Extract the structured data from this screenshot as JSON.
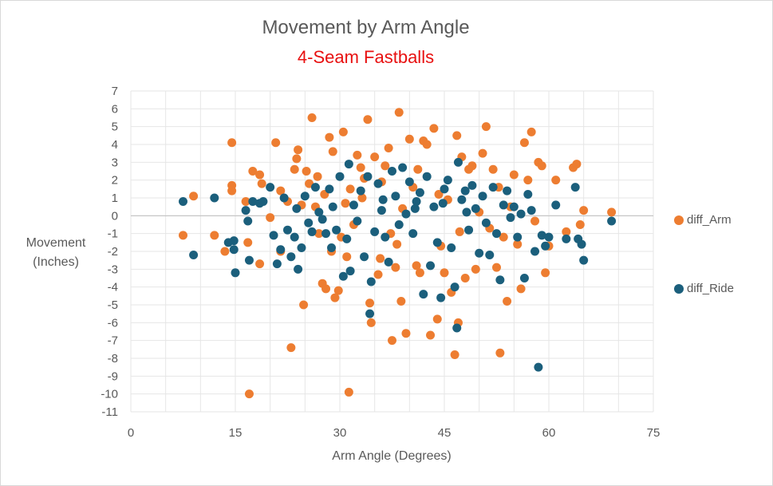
{
  "chart_data": {
    "type": "scatter",
    "title": "Movement by Arm Angle",
    "subtitle": "4-Seam Fastballs",
    "xlabel": "Arm Angle (Degrees)",
    "ylabel_line1": "Movement",
    "ylabel_line2": "(Inches)",
    "xlim": [
      0,
      75
    ],
    "ylim": [
      -11,
      7
    ],
    "x_ticks": [
      0,
      15,
      30,
      45,
      60,
      75
    ],
    "y_ticks": [
      7,
      6,
      5,
      4,
      3,
      2,
      1,
      0,
      -1,
      -2,
      -3,
      -4,
      -5,
      -6,
      -7,
      -8,
      -9,
      -10,
      -11
    ],
    "grid": true,
    "legend_position": "right",
    "series": [
      {
        "name": "diff_Arm",
        "color": "#ed7d31",
        "points": [
          [
            7.5,
            -1.1
          ],
          [
            9,
            1.1
          ],
          [
            12,
            -1.1
          ],
          [
            13.5,
            -2.0
          ],
          [
            14.5,
            4.1
          ],
          [
            14.5,
            1.7
          ],
          [
            14.5,
            1.4
          ],
          [
            16.5,
            0.8
          ],
          [
            16.8,
            -1.5
          ],
          [
            17,
            -10.0
          ],
          [
            17.5,
            2.5
          ],
          [
            18.5,
            2.3
          ],
          [
            18.8,
            1.8
          ],
          [
            18.5,
            -2.7
          ],
          [
            20,
            -0.1
          ],
          [
            20.8,
            4.1
          ],
          [
            21.5,
            1.4
          ],
          [
            21.5,
            -2.0
          ],
          [
            22.5,
            0.8
          ],
          [
            23,
            -7.4
          ],
          [
            23.5,
            2.6
          ],
          [
            23.8,
            3.2
          ],
          [
            24,
            3.7
          ],
          [
            24.5,
            0.6
          ],
          [
            24.8,
            -5.0
          ],
          [
            25.2,
            2.5
          ],
          [
            25.6,
            1.8
          ],
          [
            26,
            5.5
          ],
          [
            26.5,
            0.5
          ],
          [
            27,
            -1.0
          ],
          [
            27.5,
            -3.8
          ],
          [
            27.8,
            1.2
          ],
          [
            28,
            -4.1
          ],
          [
            28.5,
            4.4
          ],
          [
            28.8,
            -2.0
          ],
          [
            29,
            3.6
          ],
          [
            29.3,
            -4.6
          ],
          [
            29.8,
            -4.2
          ],
          [
            30.2,
            -1.2
          ],
          [
            30.5,
            4.7
          ],
          [
            31,
            -2.3
          ],
          [
            31.3,
            -9.9
          ],
          [
            31.5,
            1.5
          ],
          [
            32,
            -0.5
          ],
          [
            32.5,
            3.4
          ],
          [
            33,
            2.7
          ],
          [
            33.5,
            2.1
          ],
          [
            34,
            5.4
          ],
          [
            34.3,
            -4.9
          ],
          [
            34.5,
            -6.0
          ],
          [
            35,
            3.3
          ],
          [
            35.5,
            -3.3
          ],
          [
            36,
            1.9
          ],
          [
            36.5,
            2.8
          ],
          [
            37,
            3.8
          ],
          [
            37.3,
            -1.0
          ],
          [
            37.5,
            -7.0
          ],
          [
            38,
            -2.9
          ],
          [
            38.5,
            5.8
          ],
          [
            38.8,
            -4.8
          ],
          [
            39,
            0.4
          ],
          [
            39.5,
            -6.6
          ],
          [
            40,
            4.3
          ],
          [
            40.5,
            1.6
          ],
          [
            41,
            -2.8
          ],
          [
            41.5,
            -3.2
          ],
          [
            42,
            4.2
          ],
          [
            42.5,
            4.0
          ],
          [
            43,
            -6.7
          ],
          [
            43.5,
            4.9
          ],
          [
            44,
            -5.8
          ],
          [
            44.5,
            -1.7
          ],
          [
            45,
            -3.2
          ],
          [
            45.5,
            0.9
          ],
          [
            46,
            -4.3
          ],
          [
            46.5,
            -7.8
          ],
          [
            46.8,
            4.5
          ],
          [
            47,
            -6.0
          ],
          [
            47.5,
            3.3
          ],
          [
            48,
            -3.5
          ],
          [
            48.5,
            2.6
          ],
          [
            49,
            2.8
          ],
          [
            49.5,
            -3.0
          ],
          [
            50,
            0.2
          ],
          [
            50.5,
            3.5
          ],
          [
            51,
            5.0
          ],
          [
            51.5,
            -0.7
          ],
          [
            52,
            2.6
          ],
          [
            52.5,
            -2.9
          ],
          [
            53,
            -7.7
          ],
          [
            53.5,
            -1.2
          ],
          [
            54,
            -4.8
          ],
          [
            54.5,
            0.5
          ],
          [
            55,
            2.3
          ],
          [
            55.5,
            -1.6
          ],
          [
            56,
            -4.1
          ],
          [
            56.5,
            4.1
          ],
          [
            57,
            2.0
          ],
          [
            57.5,
            4.7
          ],
          [
            58,
            -0.3
          ],
          [
            58.5,
            3.0
          ],
          [
            59,
            2.8
          ],
          [
            59.5,
            -3.2
          ],
          [
            60,
            -1.7
          ],
          [
            61,
            2.0
          ],
          [
            62.5,
            -0.9
          ],
          [
            63.5,
            2.7
          ],
          [
            64,
            2.9
          ],
          [
            64.5,
            -0.5
          ],
          [
            65,
            0.3
          ],
          [
            69,
            0.2
          ],
          [
            33.2,
            1.0
          ],
          [
            35.8,
            -2.4
          ],
          [
            41.2,
            2.6
          ],
          [
            44.2,
            1.2
          ],
          [
            47.2,
            -0.9
          ],
          [
            38.2,
            -1.6
          ],
          [
            30.8,
            0.7
          ],
          [
            26.8,
            2.2
          ],
          [
            52.8,
            1.6
          ]
        ]
      },
      {
        "name": "diff_Ride",
        "color": "#1b5f7c",
        "points": [
          [
            7.5,
            0.8
          ],
          [
            9,
            -2.2
          ],
          [
            12,
            1.0
          ],
          [
            14,
            -1.5
          ],
          [
            14.8,
            -1.4
          ],
          [
            14.8,
            -1.9
          ],
          [
            15,
            -3.2
          ],
          [
            16.5,
            0.3
          ],
          [
            16.8,
            -0.3
          ],
          [
            17,
            -2.5
          ],
          [
            17.5,
            0.8
          ],
          [
            18.5,
            0.7
          ],
          [
            19,
            0.8
          ],
          [
            20,
            1.6
          ],
          [
            20.5,
            -1.1
          ],
          [
            21,
            -2.7
          ],
          [
            21.5,
            -1.9
          ],
          [
            22,
            1.0
          ],
          [
            22.5,
            -0.8
          ],
          [
            23,
            -2.3
          ],
          [
            23.5,
            -1.2
          ],
          [
            23.8,
            0.4
          ],
          [
            24,
            -3.0
          ],
          [
            24.5,
            -1.8
          ],
          [
            25,
            1.1
          ],
          [
            25.5,
            -0.4
          ],
          [
            26,
            -0.9
          ],
          [
            26.5,
            1.6
          ],
          [
            27,
            0.2
          ],
          [
            27.5,
            -0.2
          ],
          [
            28,
            -1.0
          ],
          [
            28.5,
            1.5
          ],
          [
            28.8,
            -1.8
          ],
          [
            29,
            0.5
          ],
          [
            29.5,
            -0.8
          ],
          [
            30,
            2.2
          ],
          [
            30.5,
            -3.4
          ],
          [
            31,
            -1.3
          ],
          [
            31.3,
            2.9
          ],
          [
            31.5,
            -3.1
          ],
          [
            32,
            0.6
          ],
          [
            32.5,
            -0.3
          ],
          [
            33,
            1.4
          ],
          [
            33.5,
            -2.3
          ],
          [
            34,
            2.2
          ],
          [
            34.3,
            -5.5
          ],
          [
            34.5,
            -3.7
          ],
          [
            35,
            -0.9
          ],
          [
            35.5,
            1.8
          ],
          [
            36,
            0.3
          ],
          [
            36.5,
            -1.2
          ],
          [
            37,
            -2.6
          ],
          [
            37.5,
            2.5
          ],
          [
            38,
            1.1
          ],
          [
            38.5,
            -0.5
          ],
          [
            39,
            2.7
          ],
          [
            39.5,
            0.1
          ],
          [
            40,
            1.9
          ],
          [
            40.5,
            -1.0
          ],
          [
            41,
            0.8
          ],
          [
            41.5,
            1.3
          ],
          [
            42,
            -4.4
          ],
          [
            42.5,
            2.2
          ],
          [
            43,
            -2.8
          ],
          [
            43.5,
            0.5
          ],
          [
            44,
            -1.5
          ],
          [
            44.5,
            -4.6
          ],
          [
            45,
            1.5
          ],
          [
            45.5,
            2.0
          ],
          [
            46,
            -1.8
          ],
          [
            46.5,
            -4.0
          ],
          [
            46.8,
            -6.3
          ],
          [
            47,
            3.0
          ],
          [
            47.5,
            0.9
          ],
          [
            48,
            1.4
          ],
          [
            48.5,
            -0.8
          ],
          [
            49,
            1.7
          ],
          [
            49.5,
            0.4
          ],
          [
            50,
            -2.1
          ],
          [
            50.5,
            1.1
          ],
          [
            51,
            -0.4
          ],
          [
            51.5,
            -2.2
          ],
          [
            52,
            1.6
          ],
          [
            52.5,
            -1.0
          ],
          [
            53,
            -3.6
          ],
          [
            53.5,
            0.6
          ],
          [
            54,
            1.4
          ],
          [
            54.5,
            -0.1
          ],
          [
            55,
            0.5
          ],
          [
            55.5,
            -1.2
          ],
          [
            56,
            0.1
          ],
          [
            56.5,
            -3.5
          ],
          [
            57,
            1.2
          ],
          [
            57.5,
            0.3
          ],
          [
            58,
            -2.0
          ],
          [
            58.5,
            -8.5
          ],
          [
            59,
            -1.1
          ],
          [
            59.5,
            -1.7
          ],
          [
            60,
            -1.2
          ],
          [
            61,
            0.6
          ],
          [
            62.5,
            -1.3
          ],
          [
            63.8,
            1.6
          ],
          [
            64.2,
            -1.3
          ],
          [
            64.7,
            -1.6
          ],
          [
            65,
            -2.5
          ],
          [
            69,
            -0.3
          ],
          [
            36.2,
            0.9
          ],
          [
            40.8,
            0.4
          ],
          [
            44.8,
            0.7
          ],
          [
            48.2,
            0.2
          ]
        ]
      }
    ]
  }
}
